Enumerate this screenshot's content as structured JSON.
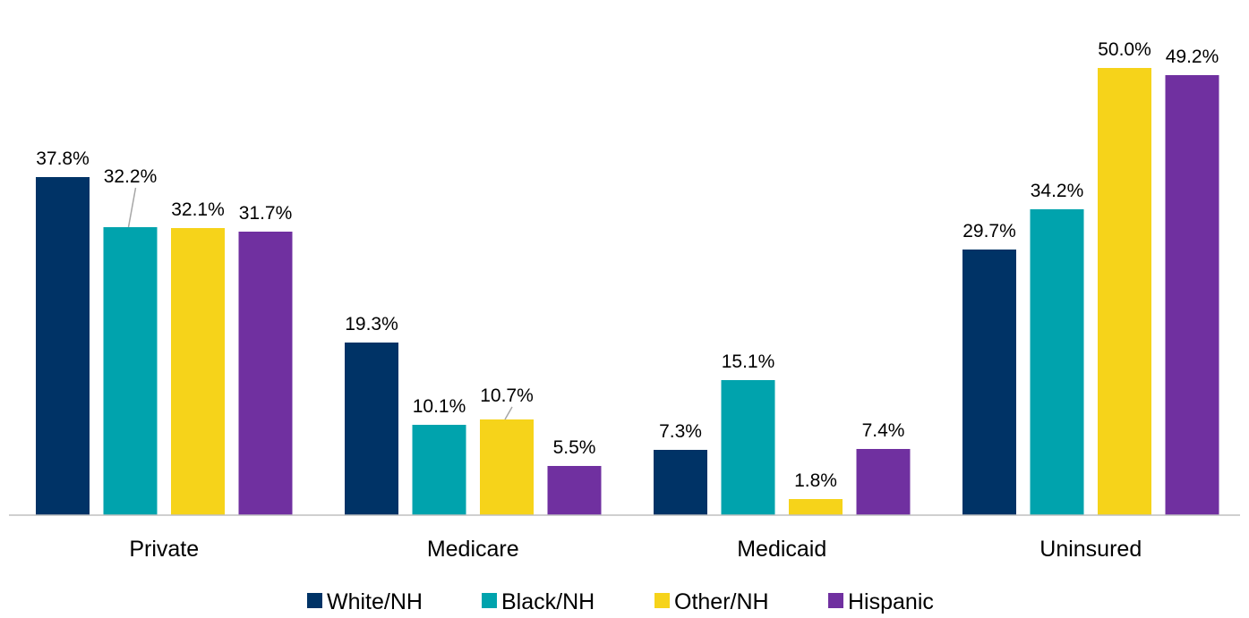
{
  "chart_data": {
    "type": "bar",
    "title": "",
    "xlabel": "",
    "ylabel": "",
    "ylim": [
      0,
      55
    ],
    "grid": false,
    "legend_position": "bottom",
    "categories": [
      "Private",
      "Medicare",
      "Medicaid",
      "Uninsured"
    ],
    "series": [
      {
        "name": "White/NH",
        "color": "#003366",
        "values": [
          37.8,
          19.3,
          7.3,
          29.7
        ],
        "labels": [
          "37.8%",
          "19.3%",
          "7.3%",
          "29.7%"
        ]
      },
      {
        "name": "Black/NH",
        "color": "#00A3AD",
        "values": [
          32.2,
          10.1,
          15.1,
          34.2
        ],
        "labels": [
          "32.2%",
          "10.1%",
          "15.1%",
          "34.2%"
        ]
      },
      {
        "name": "Other/NH",
        "color": "#F6D31A",
        "values": [
          32.1,
          10.7,
          1.8,
          50.0
        ],
        "labels": [
          "32.1%",
          "10.7%",
          "1.8%",
          "50.0%"
        ]
      },
      {
        "name": "Hispanic",
        "color": "#7030A0",
        "values": [
          31.7,
          5.5,
          7.4,
          49.2
        ],
        "labels": [
          "31.7%",
          "5.5%",
          "7.4%",
          "49.2%"
        ]
      }
    ]
  }
}
